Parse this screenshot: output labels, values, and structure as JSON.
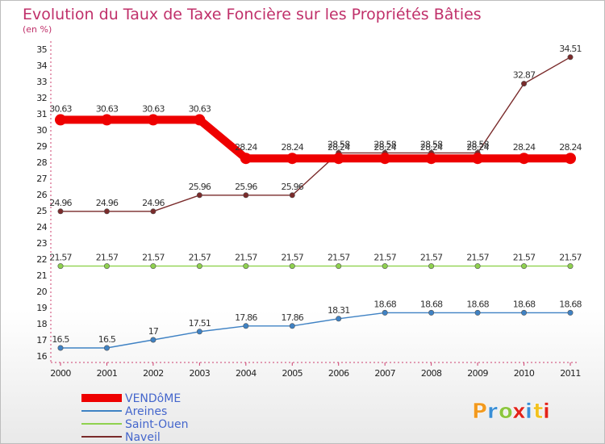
{
  "chart_data": {
    "type": "line",
    "title": "Evolution du Taux de Taxe Foncière sur les Propriétés Bâties",
    "subtitle": "(en %)",
    "xlabel": "",
    "ylabel": "(en %)",
    "x": [
      "2000",
      "2001",
      "2002",
      "2003",
      "2004",
      "2005",
      "2006",
      "2007",
      "2008",
      "2009",
      "2010",
      "2011"
    ],
    "ylim": [
      16,
      35
    ],
    "yticks": [
      16,
      17,
      18,
      19,
      20,
      21,
      22,
      23,
      24,
      25,
      26,
      27,
      28,
      29,
      30,
      31,
      32,
      33,
      34,
      35
    ],
    "grid": false,
    "legend_position": "bottom-left",
    "series": [
      {
        "name": "VENDôME",
        "color": "#ee0000",
        "values": [
          30.63,
          30.63,
          30.63,
          30.63,
          28.24,
          28.24,
          28.24,
          28.24,
          28.24,
          28.24,
          28.24,
          28.24
        ],
        "labels": [
          "30.63",
          "30.63",
          "30.63",
          "30.63",
          "28.24",
          "28.24",
          "28.24",
          "28.24",
          "28.24",
          "28.24",
          "28.24",
          "28.24"
        ]
      },
      {
        "name": "Areines",
        "color": "#3f82c4",
        "values": [
          16.5,
          16.5,
          17,
          17.51,
          17.86,
          17.86,
          18.31,
          18.68,
          18.68,
          18.68,
          18.68,
          18.68
        ],
        "labels": [
          "16.5",
          "16.5",
          "17",
          "17.51",
          "17.86",
          "17.86",
          "18.31",
          "18.68",
          "18.68",
          "18.68",
          "18.68",
          "18.68"
        ]
      },
      {
        "name": "Saint-Ouen",
        "color": "#8fd14f",
        "values": [
          21.57,
          21.57,
          21.57,
          21.57,
          21.57,
          21.57,
          21.57,
          21.57,
          21.57,
          21.57,
          21.57,
          21.57
        ],
        "labels": [
          "21.57",
          "21.57",
          "21.57",
          "21.57",
          "21.57",
          "21.57",
          "21.57",
          "21.57",
          "21.57",
          "21.57",
          "21.57",
          "21.57"
        ]
      },
      {
        "name": "Naveil",
        "color": "#7a2b2b",
        "values": [
          24.96,
          24.96,
          24.96,
          25.96,
          25.96,
          25.96,
          28.58,
          28.58,
          28.58,
          28.58,
          32.87,
          34.51
        ],
        "labels": [
          "24.96",
          "24.96",
          "24.96",
          "25.96",
          "25.96",
          "25.96",
          "28.58",
          "28.58",
          "28.58",
          "28.58",
          "32.87",
          "34.51"
        ]
      }
    ]
  },
  "logo": {
    "text": "Proxiti",
    "colors": [
      "#f29a1f",
      "#3a8fd6",
      "#8cc63f",
      "#e2231a",
      "#3a8fd6",
      "#f2c21f",
      "#e2231a"
    ]
  }
}
